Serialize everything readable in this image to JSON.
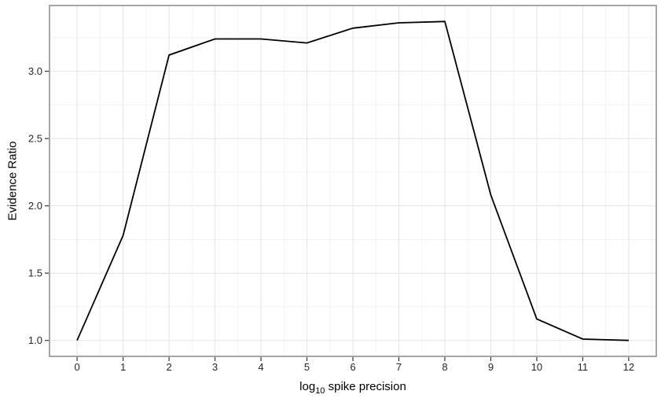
{
  "chart_data": {
    "type": "line",
    "title": "",
    "xlabel": {
      "prefix": "log",
      "subscript": "10",
      "suffix": " spike precision"
    },
    "ylabel": "Evidence Ratio",
    "series": [
      {
        "name": "evidence-ratio",
        "x": [
          0,
          1,
          2,
          3,
          4,
          5,
          6,
          7,
          8,
          9,
          10,
          11,
          12
        ],
        "y": [
          1.0,
          1.78,
          3.12,
          3.24,
          3.24,
          3.21,
          3.32,
          3.36,
          3.37,
          2.08,
          1.16,
          1.01,
          1.0
        ]
      }
    ],
    "xlim": [
      -0.6,
      12.6
    ],
    "ylim": [
      0.8815,
      3.4885
    ],
    "x_major_ticks": [
      0,
      1,
      2,
      3,
      4,
      5,
      6,
      7,
      8,
      9,
      10,
      11,
      12
    ],
    "x_tick_labels": [
      "0",
      "1",
      "2",
      "3",
      "4",
      "5",
      "6",
      "7",
      "8",
      "9",
      "10",
      "11",
      "12"
    ],
    "x_minor_ticks": [
      -0.5,
      0.5,
      1.5,
      2.5,
      3.5,
      4.5,
      5.5,
      6.5,
      7.5,
      8.5,
      9.5,
      10.5,
      11.5,
      12.5
    ],
    "y_major_ticks": [
      1.0,
      1.5,
      2.0,
      2.5,
      3.0
    ],
    "y_tick_labels": [
      "1.0",
      "1.5",
      "2.0",
      "2.5",
      "3.0"
    ],
    "y_minor_ticks": [
      1.25,
      1.75,
      2.25,
      2.75,
      3.25
    ],
    "grid": true,
    "legend_position": "none",
    "colors": {
      "line": "#000000",
      "grid_major": "#e4e4e4",
      "grid_minor": "#f1f1f1",
      "panel_border": "#8f8f8f",
      "panel_background": "#ffffff",
      "tick_mark": "#333333",
      "tick_label": "#262626",
      "axis_title": "#000000"
    }
  }
}
